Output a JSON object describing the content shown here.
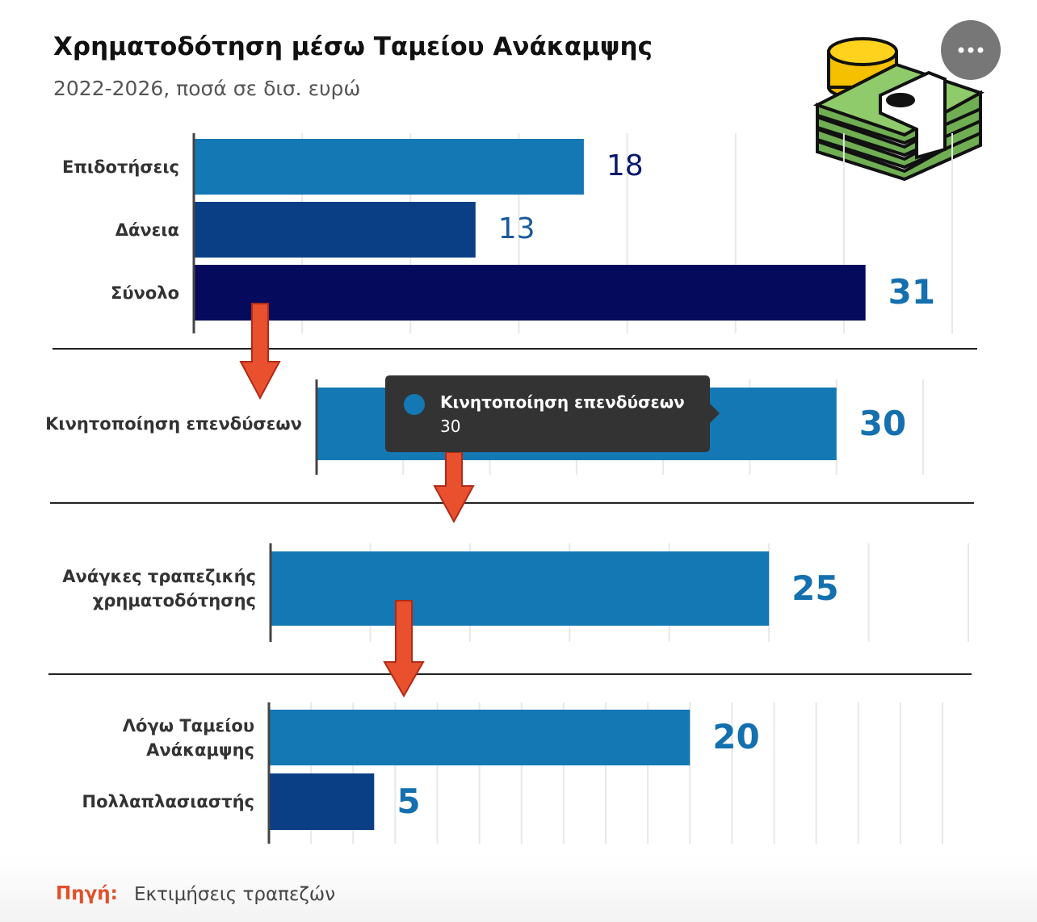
{
  "header": {
    "title": "Χρηματοδότηση μέσω Ταμείου Ανάκαμψης",
    "subtitle": "2022-2026, ποσά σε δισ. ευρώ"
  },
  "chart_data": [
    {
      "type": "hbar",
      "categories": [
        "Επιδοτήσεις",
        "Δάνεια",
        "Σύνολο"
      ],
      "values": [
        18,
        13,
        31
      ],
      "colors": [
        "#1478b4",
        "#0a3f85",
        "#050a5c"
      ],
      "xlim": [
        0,
        35
      ],
      "xticks": [
        0,
        5,
        10,
        15,
        20,
        25,
        30,
        35
      ],
      "grid": true
    },
    {
      "type": "hbar",
      "categories": [
        "Κινητοποίηση επενδύσεων"
      ],
      "values": [
        30
      ],
      "colors": [
        "#1478b4"
      ],
      "xlim": [
        0,
        35
      ],
      "xticks": [
        0,
        5,
        10,
        15,
        20,
        25,
        30,
        35
      ],
      "grid": true
    },
    {
      "type": "hbar",
      "categories": [
        "Ανάγκες τραπεζικής χρηματοδότησης"
      ],
      "values": [
        25
      ],
      "colors": [
        "#1478b4"
      ],
      "xlim": [
        0,
        35
      ],
      "xticks": [
        0,
        5,
        10,
        15,
        20,
        25,
        30,
        35
      ],
      "grid": true
    },
    {
      "type": "hbar",
      "categories": [
        "Λόγω Ταμείου Ανάκαμψης",
        "Πολλαπλασιαστής"
      ],
      "values": [
        20,
        5
      ],
      "colors": [
        "#1478b4",
        "#0a3f85"
      ],
      "xlim": [
        0,
        32
      ],
      "xticks": [
        0,
        2,
        4,
        6,
        8,
        10,
        12,
        14,
        16,
        18,
        20,
        22,
        24,
        26,
        28,
        30,
        32
      ],
      "grid": true
    }
  ],
  "tooltip": {
    "name": "Κινητοποίηση επενδύσεων",
    "value": "30"
  },
  "source": {
    "label": "Πηγή:",
    "text": "Εκτιμήσεις τραπεζών"
  }
}
